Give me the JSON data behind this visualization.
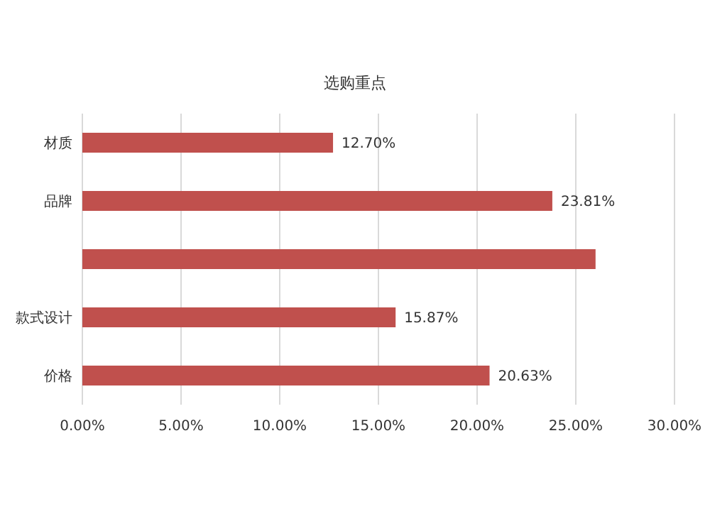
{
  "chart_data": {
    "type": "bar",
    "orientation": "horizontal",
    "title": "选购重点",
    "categories": [
      "材质",
      "品牌",
      null,
      "款式设计",
      "价格"
    ],
    "values": [
      12.7,
      23.81,
      26.0,
      15.87,
      20.63
    ],
    "value_labels": [
      "12.70%",
      "23.81%",
      null,
      "15.87%",
      "20.63%"
    ],
    "color": "#c0504d",
    "xlim": [
      0,
      30
    ],
    "xticks": [
      {
        "value": 0,
        "label": "0.00%"
      },
      {
        "value": 5,
        "label": "5.00%"
      },
      {
        "value": 10,
        "label": "10.00%"
      },
      {
        "value": 15,
        "label": "15.00%"
      },
      {
        "value": 20,
        "label": "20.00%"
      },
      {
        "value": 25,
        "label": "25.00%"
      },
      {
        "value": 30,
        "label": "30.00%"
      }
    ],
    "grid": "x"
  }
}
